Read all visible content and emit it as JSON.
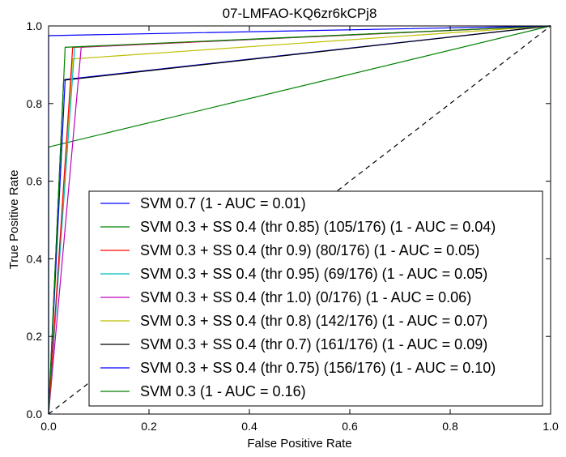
{
  "chart_data": {
    "type": "line",
    "title": "07-LMFAO-KQ6zr6kCPj8",
    "xlabel": "False Positive Rate",
    "ylabel": "True Positive Rate",
    "xlim": [
      0.0,
      1.0
    ],
    "ylim": [
      0.0,
      1.0
    ],
    "x_ticks": [
      "0.0",
      "0.2",
      "0.4",
      "0.6",
      "0.8",
      "1.0"
    ],
    "y_ticks": [
      "0.0",
      "0.2",
      "0.4",
      "0.6",
      "0.8",
      "1.0"
    ],
    "grid": false,
    "legend_position": "lower-right",
    "series": [
      {
        "name": "SVM 0.7 (1 - AUC = 0.01)",
        "color": "#0000ff",
        "x": [
          0.0,
          0.0,
          1.0
        ],
        "y": [
          0.0,
          0.975,
          1.0
        ]
      },
      {
        "name": "SVM 0.3 + SS 0.4 (thr 0.85) (105/176) (1 - AUC = 0.04)",
        "color": "#008000",
        "x": [
          0.0,
          0.033,
          1.0
        ],
        "y": [
          0.0,
          0.945,
          1.0
        ]
      },
      {
        "name": "SVM 0.3 + SS 0.4 (thr 0.9) (80/176) (1 - AUC = 0.05)",
        "color": "#ff0000",
        "x": [
          0.0,
          0.048,
          1.0
        ],
        "y": [
          0.0,
          0.945,
          1.0
        ]
      },
      {
        "name": "SVM 0.3 + SS 0.4 (thr 0.95) (69/176) (1 - AUC = 0.05)",
        "color": "#00bfbf",
        "x": [
          0.0,
          0.052,
          1.0
        ],
        "y": [
          0.0,
          0.945,
          1.0
        ]
      },
      {
        "name": "SVM 0.3 + SS 0.4 (thr 1.0) (0/176) (1 - AUC = 0.06)",
        "color": "#bf00bf",
        "x": [
          0.0,
          0.065,
          1.0
        ],
        "y": [
          0.0,
          0.945,
          1.0
        ]
      },
      {
        "name": "SVM 0.3 + SS 0.4 (thr 0.8) (142/176) (1 - AUC = 0.07)",
        "color": "#bfbf00",
        "x": [
          0.0,
          0.048,
          1.0
        ],
        "y": [
          0.0,
          0.915,
          1.0
        ]
      },
      {
        "name": "SVM 0.3 + SS 0.4 (thr 0.7) (161/176) (1 - AUC = 0.09)",
        "color": "#000000",
        "x": [
          0.0,
          0.03,
          1.0
        ],
        "y": [
          0.0,
          0.86,
          1.0
        ]
      },
      {
        "name": "SVM 0.3 + SS 0.4 (thr 0.75) (156/176) (1 - AUC = 0.10)",
        "color": "#0000ff",
        "x": [
          0.0,
          0.033,
          1.0
        ],
        "y": [
          0.0,
          0.862,
          1.0
        ]
      },
      {
        "name": "SVM 0.3 (1 - AUC = 0.16)",
        "color": "#008000",
        "x": [
          0.0,
          0.0,
          1.0
        ],
        "y": [
          0.0,
          0.688,
          1.0
        ]
      }
    ],
    "reference_line": {
      "x": [
        0.0,
        1.0
      ],
      "y": [
        0.0,
        1.0
      ],
      "style": "dashed",
      "color": "#000000"
    }
  }
}
